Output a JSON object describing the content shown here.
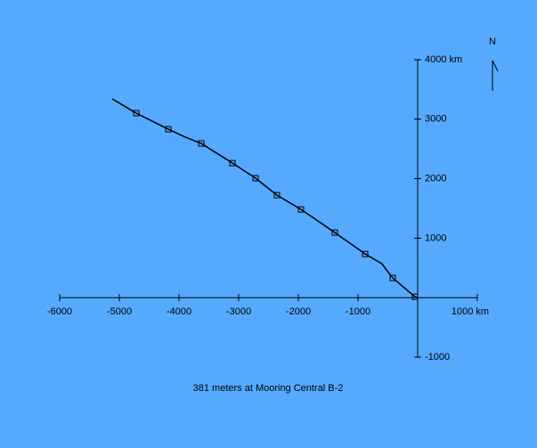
{
  "chart_data": {
    "type": "line",
    "title": "381 meters at Mooring Central B-2",
    "north_label": "N",
    "xlim": [
      -6000,
      1000
    ],
    "ylim": [
      -1000,
      4000
    ],
    "xticks": [
      -6000,
      -5000,
      -4000,
      -3000,
      -2000,
      -1000,
      {
        "value": 1000,
        "label": "1000 km"
      }
    ],
    "yticks": [
      {
        "value": 4000,
        "label": "4000 km"
      },
      3000,
      2000,
      1000,
      -1000
    ],
    "color": "#000000",
    "series": [
      {
        "x": [
          -5119,
          -4716,
          -4179,
          -3900,
          -3627,
          -3104,
          -2716,
          -2358,
          -1955,
          -1388,
          -881,
          -600,
          -418,
          -45,
          0
        ],
        "values": [
          3341,
          3101,
          2831,
          2700,
          2592,
          2262,
          2007,
          1723,
          1483,
          1094,
          734,
          570,
          330,
          15,
          0
        ]
      }
    ],
    "markers": {
      "x": [
        -4716,
        -4179,
        -3627,
        -3104,
        -2716,
        -2358,
        -1955,
        -1388,
        -881,
        -418,
        -45
      ],
      "values": [
        3101,
        2831,
        2592,
        2262,
        2007,
        1723,
        1483,
        1094,
        734,
        330,
        15
      ]
    }
  }
}
